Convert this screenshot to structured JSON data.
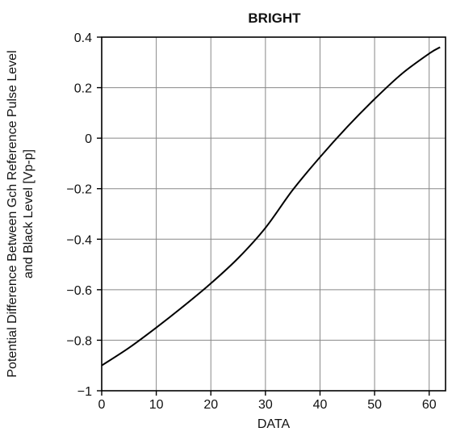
{
  "chart_data": {
    "type": "line",
    "title": "BRIGHT",
    "xlabel": "DATA",
    "ylabel_lines": [
      "Potential Difference Between Gch Reference Pulse Level",
      "and Black Level [Vp-p]"
    ],
    "xlim": [
      0,
      63
    ],
    "ylim": [
      -1,
      0.4
    ],
    "grid": true,
    "x_ticks": [
      0,
      10,
      20,
      30,
      40,
      50,
      60
    ],
    "x_tick_labels": [
      "0",
      "10",
      "20",
      "30",
      "40",
      "50",
      "60"
    ],
    "y_ticks": [
      -1,
      -0.8,
      -0.6,
      -0.4,
      -0.2,
      0,
      0.2,
      0.4
    ],
    "y_tick_labels": [
      "−1",
      "−0.8",
      "−0.6",
      "−0.4",
      "−0.2",
      "0",
      "0.2",
      "0.4"
    ],
    "series": [
      {
        "x": [
          0,
          5,
          10,
          15,
          20,
          25,
          30,
          35,
          40,
          45,
          50,
          55,
          60,
          62
        ],
        "y": [
          -0.9,
          -0.83,
          -0.75,
          -0.665,
          -0.575,
          -0.475,
          -0.355,
          -0.205,
          -0.075,
          0.045,
          0.155,
          0.255,
          0.335,
          0.36
        ]
      }
    ]
  }
}
